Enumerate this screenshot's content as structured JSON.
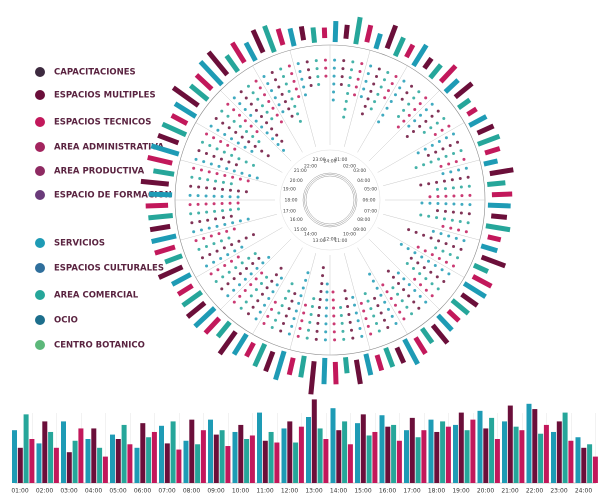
{
  "chart_data": {
    "type": "radial-bar",
    "legend": [
      {
        "name": "CAPACITACIONES",
        "color": "#3d2a3f"
      },
      {
        "name": "ESPACIOS MULTIPLES",
        "color": "#6b0f3a"
      },
      {
        "name": "ESPACIOS TECNICOS",
        "color": "#c2185b"
      },
      {
        "name": "AREA ADMINISTRATIVA",
        "color": "#a3245e"
      },
      {
        "name": "AREA PRODUCTIVA",
        "color": "#8e2a62"
      },
      {
        "name": "ESPACIO DE FORMACION",
        "color": "#6a3b7a"
      },
      {
        "name": "SERVICIOS",
        "color": "#1e9bb5"
      },
      {
        "name": "ESPACIOS CULTURALES",
        "color": "#2f6f9c"
      },
      {
        "name": "AREA COMERCIAL",
        "color": "#26a69a"
      },
      {
        "name": "OCIO",
        "color": "#1c6e8c"
      },
      {
        "name": "CENTRO BOTANICO",
        "color": "#5cb87a"
      }
    ],
    "categories": [
      "01:00",
      "02:00",
      "03:00",
      "04:00",
      "05:00",
      "06:00",
      "07:00",
      "08:00",
      "09:00",
      "10:00",
      "11:00",
      "12:00",
      "13:00",
      "14:00",
      "15:00",
      "16:00",
      "17:00",
      "18:00",
      "19:00",
      "20:00",
      "21:00",
      "22:00",
      "23:00",
      "24:00"
    ],
    "series": [
      {
        "name": "SERVICIOS",
        "color": "#1e9bb5",
        "values": [
          60,
          45,
          70,
          50,
          55,
          40,
          65,
          48,
          72,
          58,
          80,
          62,
          75,
          85,
          68,
          77,
          60,
          72,
          66,
          82,
          70,
          90,
          58,
          52
        ]
      },
      {
        "name": "ESPACIOS MULTIPLES",
        "color": "#6b0f3a",
        "values": [
          40,
          70,
          35,
          62,
          50,
          68,
          45,
          72,
          55,
          66,
          48,
          70,
          95,
          60,
          78,
          64,
          74,
          58,
          80,
          62,
          88,
          84,
          70,
          40
        ]
      },
      {
        "name": "AREA COMERCIAL",
        "color": "#26a69a",
        "values": [
          78,
          58,
          48,
          40,
          66,
          52,
          70,
          44,
          60,
          50,
          58,
          46,
          62,
          70,
          54,
          66,
          52,
          70,
          60,
          74,
          64,
          56,
          80,
          44
        ]
      },
      {
        "name": "ESPACIOS TECNICOS",
        "color": "#c2185b",
        "values": [
          50,
          40,
          62,
          30,
          44,
          58,
          38,
          60,
          42,
          54,
          46,
          64,
          50,
          44,
          58,
          48,
          60,
          64,
          72,
          50,
          60,
          66,
          48,
          30
        ]
      }
    ]
  }
}
